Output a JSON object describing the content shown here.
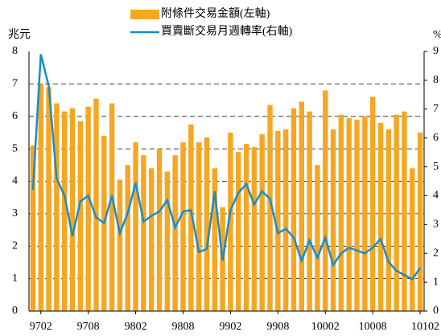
{
  "chart_data": {
    "type": "bar_line",
    "y_label": "兆元",
    "y2_label": "%",
    "categories": [
      null,
      "9702",
      null,
      null,
      null,
      null,
      null,
      "9708",
      null,
      null,
      null,
      null,
      null,
      "9802",
      null,
      null,
      null,
      null,
      null,
      "9808",
      null,
      null,
      null,
      null,
      null,
      "9902",
      null,
      null,
      null,
      null,
      null,
      "9908",
      null,
      null,
      null,
      null,
      null,
      "10002",
      null,
      null,
      null,
      null,
      null,
      "10008",
      null,
      null,
      null,
      null,
      null,
      "10102"
    ],
    "series": [
      {
        "name": "附條件交易金額(左軸)",
        "color": "#f5a623",
        "kind": "bar",
        "axis": "y",
        "values": [
          5.1,
          7.0,
          6.9,
          6.4,
          6.15,
          6.25,
          5.85,
          6.3,
          6.55,
          5.4,
          6.4,
          4.05,
          4.5,
          5.2,
          4.8,
          4.4,
          5.0,
          4.3,
          4.8,
          5.2,
          5.75,
          5.2,
          5.35,
          4.4,
          3.2,
          5.5,
          4.9,
          5.15,
          5.05,
          5.45,
          6.35,
          5.55,
          5.6,
          6.25,
          6.45,
          6.15,
          4.5,
          6.8,
          5.6,
          6.05,
          5.95,
          5.9,
          6.0,
          6.6,
          5.8,
          5.6,
          6.05,
          6.15,
          4.4,
          5.5
        ]
      },
      {
        "name": "買賣斷交易月週轉率(右軸)",
        "color": "#1a8cc8",
        "kind": "line",
        "axis": "y2",
        "values": [
          4.2,
          8.9,
          7.8,
          4.6,
          4.0,
          2.6,
          3.8,
          4.0,
          3.25,
          3.05,
          4.0,
          2.7,
          3.4,
          4.45,
          3.1,
          3.3,
          3.45,
          3.85,
          2.9,
          3.45,
          3.5,
          2.05,
          2.15,
          4.15,
          1.75,
          3.5,
          4.1,
          4.4,
          3.7,
          4.15,
          3.9,
          2.7,
          2.85,
          2.55,
          1.75,
          2.45,
          1.85,
          2.55,
          1.6,
          2.0,
          2.2,
          2.1,
          2.0,
          2.2,
          2.5,
          1.7,
          1.4,
          1.25,
          1.1,
          1.5
        ]
      }
    ],
    "ylim": [
      0,
      8
    ],
    "yticks": [
      0,
      1,
      2,
      3,
      4,
      5,
      6,
      7,
      8
    ],
    "y2lim": [
      0,
      9
    ],
    "y2ticks": [
      0,
      1,
      2,
      3,
      4,
      5,
      6,
      7,
      8,
      9
    ],
    "grid": true
  }
}
